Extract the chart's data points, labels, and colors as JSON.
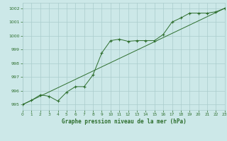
{
  "title": "Graphe pression niveau de la mer (hPa)",
  "background_color": "#cce8e8",
  "grid_color": "#aacccc",
  "line_color": "#2d6e2d",
  "x_values": [
    0,
    1,
    2,
    3,
    4,
    5,
    6,
    7,
    8,
    9,
    10,
    11,
    12,
    13,
    14,
    15,
    16,
    17,
    18,
    19,
    20,
    21,
    22,
    23
  ],
  "y_detail": [
    995.0,
    995.3,
    995.7,
    995.6,
    995.25,
    995.9,
    996.3,
    996.3,
    997.15,
    998.75,
    999.65,
    999.75,
    999.6,
    999.65,
    999.65,
    999.65,
    1000.1,
    1001.0,
    1001.3,
    1001.65,
    1001.65,
    1001.65,
    1001.75,
    1002.0
  ],
  "y_trend": [
    995.0,
    995.3,
    995.7,
    995.6,
    995.25,
    996.0,
    996.55,
    997.15,
    997.15,
    998.3,
    999.65,
    999.75,
    999.6,
    999.65,
    999.65,
    999.75,
    1000.3,
    1001.0,
    1001.3,
    1001.65,
    1001.65,
    1001.65,
    1001.75,
    1002.0
  ],
  "ylim": [
    994.6,
    1002.4
  ],
  "yticks": [
    995,
    996,
    997,
    998,
    999,
    1000,
    1001,
    1002
  ],
  "xlim": [
    0,
    23
  ],
  "xticks": [
    0,
    1,
    2,
    3,
    4,
    5,
    6,
    7,
    8,
    9,
    10,
    11,
    12,
    13,
    14,
    15,
    16,
    17,
    18,
    19,
    20,
    21,
    22,
    23
  ]
}
